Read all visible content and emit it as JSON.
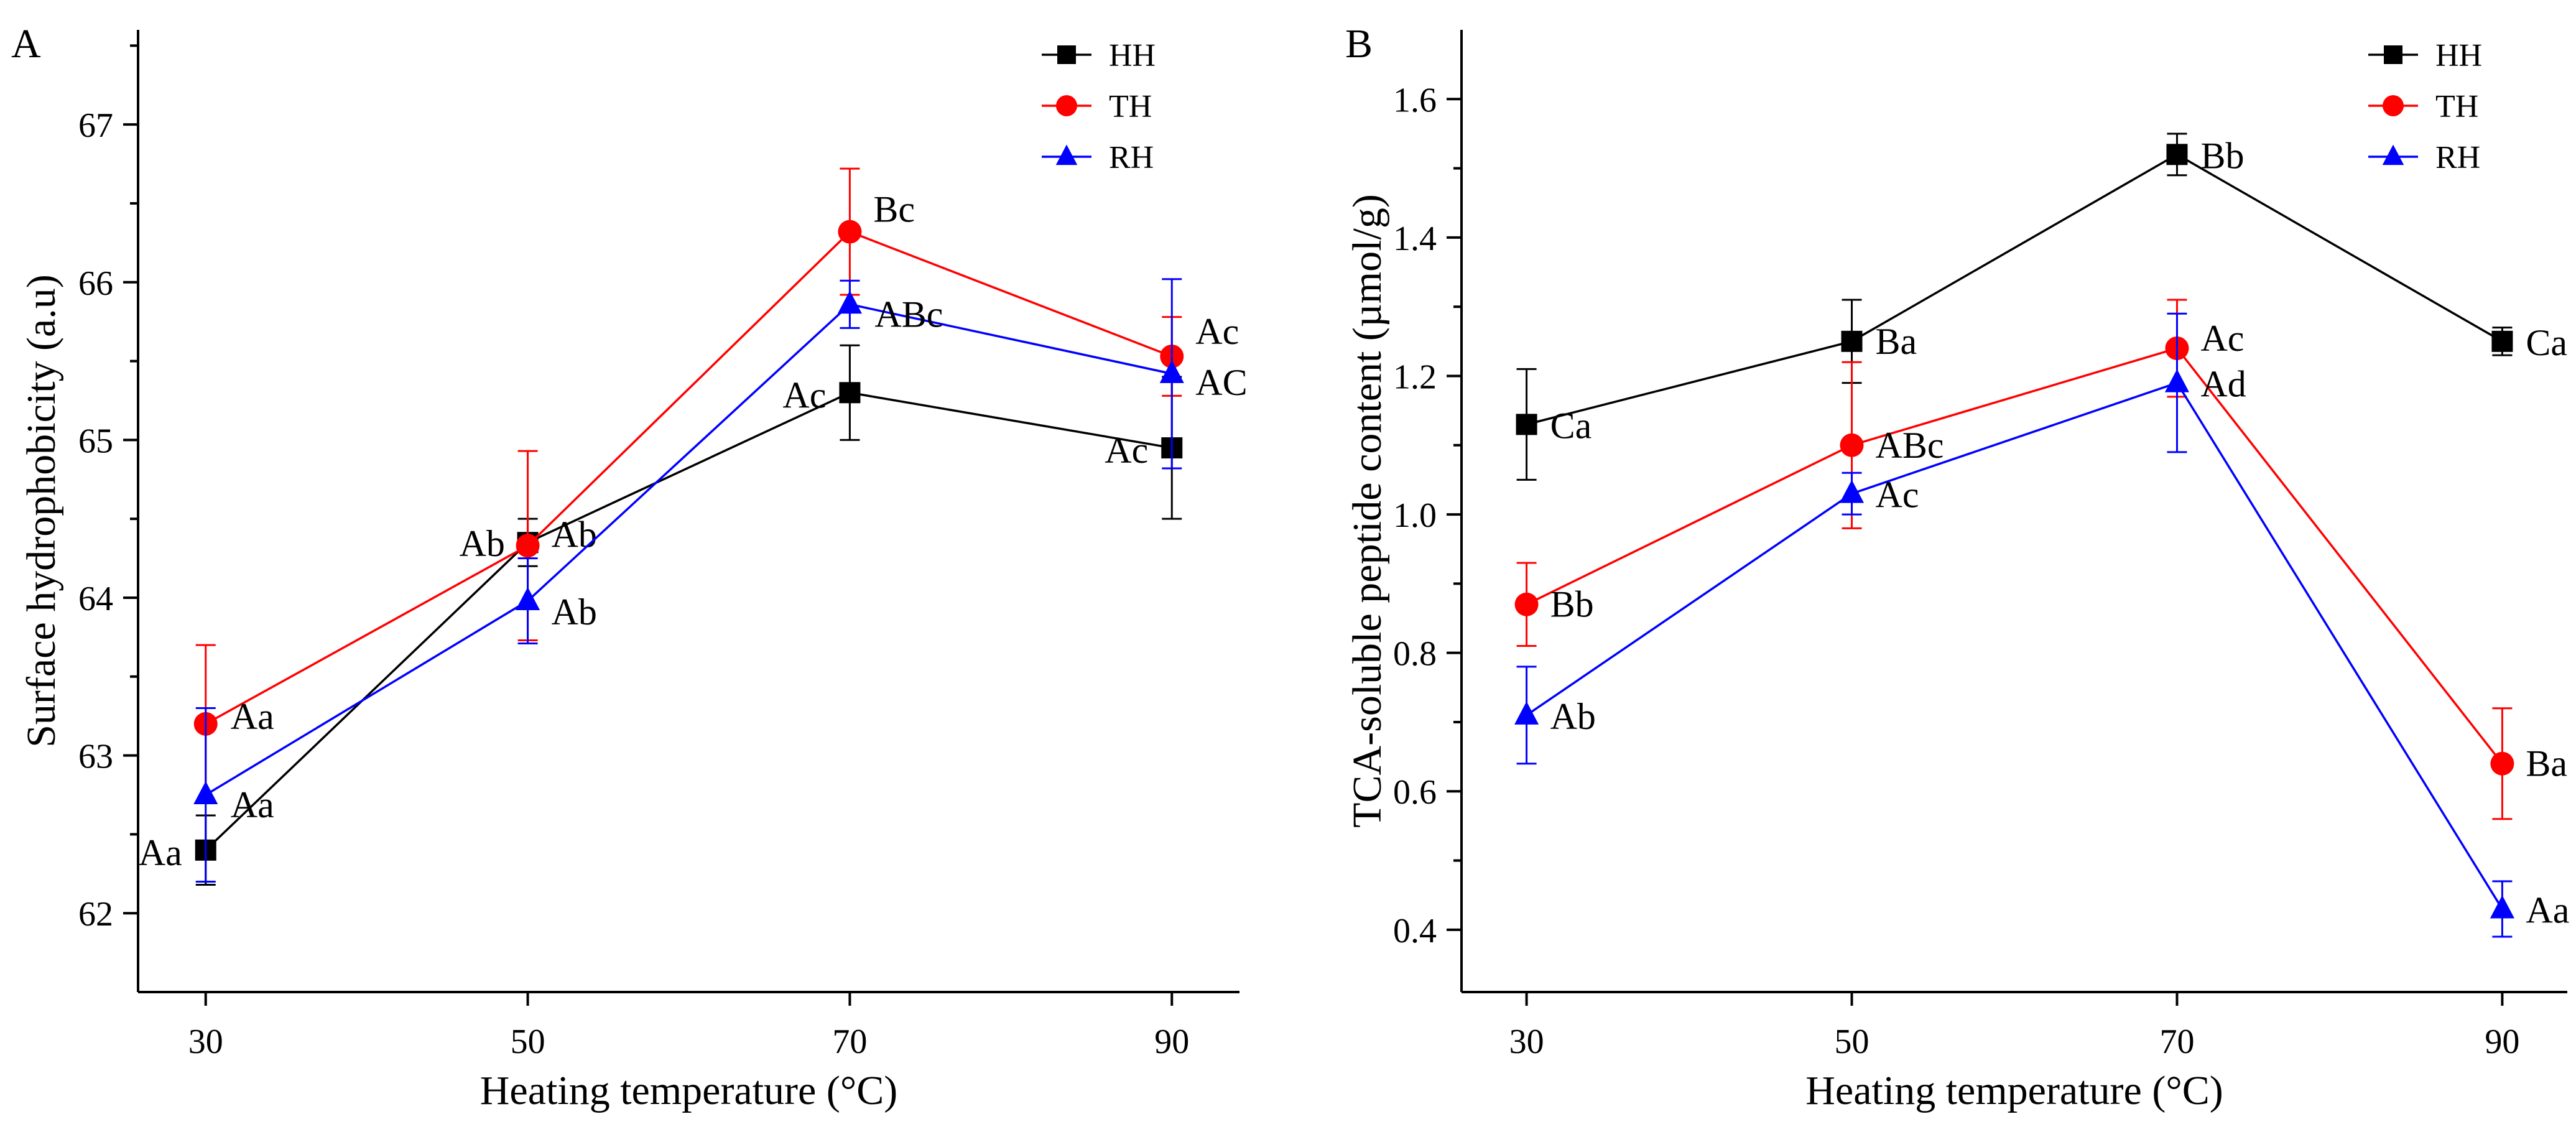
{
  "chart_data": [
    {
      "type": "line",
      "panel_label": "A",
      "xlabel": "Heating temperature (°C)",
      "ylabel": "Surface hydrophobicity (a.u)",
      "x": [
        30,
        50,
        70,
        90
      ],
      "xlim": [
        25.8,
        94.2
      ],
      "ylim": [
        61.5,
        67.6
      ],
      "xticks": [
        30,
        50,
        70,
        90
      ],
      "yticks": [
        62,
        63,
        64,
        65,
        66,
        67
      ],
      "legend_position": "top-right",
      "series": [
        {
          "name": "HH",
          "color": "#000000",
          "marker": "square",
          "values": [
            62.4,
            64.35,
            65.3,
            64.95
          ],
          "errors": [
            0.22,
            0.15,
            0.3,
            0.45
          ],
          "labels": [
            "Aa",
            "Ab",
            "Ac",
            "Ac"
          ]
        },
        {
          "name": "TH",
          "color": "#ff0000",
          "marker": "circle",
          "values": [
            63.2,
            64.33,
            66.32,
            65.53
          ],
          "errors": [
            0.5,
            0.6,
            0.4,
            0.25
          ],
          "labels": [
            "Aa",
            "Ab",
            "Bc",
            "Ac"
          ]
        },
        {
          "name": "RH",
          "color": "#0000ff",
          "marker": "triangle",
          "values": [
            62.75,
            63.98,
            65.86,
            65.42
          ],
          "errors": [
            0.55,
            0.27,
            0.15,
            0.6
          ],
          "labels": [
            "Aa",
            "Ab",
            "ABc",
            "AC"
          ]
        }
      ]
    },
    {
      "type": "line",
      "panel_label": "B",
      "xlabel": "Heating temperature (°C)",
      "ylabel": "TCA-soluble peptide content (µmol/g)",
      "x": [
        30,
        50,
        70,
        90
      ],
      "xlim": [
        26,
        94
      ],
      "ylim": [
        0.31,
        1.7
      ],
      "xticks": [
        30,
        50,
        70,
        90
      ],
      "yticks": [
        0.4,
        0.6,
        0.8,
        1.0,
        1.2,
        1.4,
        1.6
      ],
      "legend_position": "top-right",
      "series": [
        {
          "name": "HH",
          "color": "#000000",
          "marker": "square",
          "values": [
            1.13,
            1.25,
            1.52,
            1.25
          ],
          "errors": [
            0.08,
            0.06,
            0.03,
            0.02
          ],
          "labels": [
            "Ca",
            "Ba",
            "Bb",
            "Ca"
          ]
        },
        {
          "name": "TH",
          "color": "#ff0000",
          "marker": "circle",
          "values": [
            0.87,
            1.1,
            1.24,
            0.64
          ],
          "errors": [
            0.06,
            0.12,
            0.07,
            0.08
          ],
          "labels": [
            "Bb",
            "ABc",
            "Ac",
            "Ba"
          ]
        },
        {
          "name": "RH",
          "color": "#0000ff",
          "marker": "triangle",
          "values": [
            0.71,
            1.03,
            1.19,
            0.43
          ],
          "errors": [
            0.07,
            0.03,
            0.1,
            0.04
          ],
          "labels": [
            "Ab",
            "Ac",
            "Ad",
            "Aa"
          ]
        }
      ]
    }
  ]
}
